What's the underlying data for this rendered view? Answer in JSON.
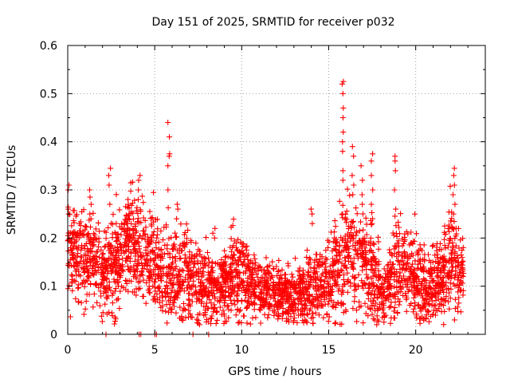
{
  "chart_data": {
    "type": "scatter",
    "title": "Day 151 of 2025, SRMTID for receiver p032",
    "xlabel": "GPS time / hours",
    "ylabel": "SRMTID / TECUs",
    "xlim": [
      0,
      24
    ],
    "ylim": [
      0,
      0.6
    ],
    "x_ticks": [
      0,
      5,
      10,
      15,
      20
    ],
    "x_tick_labels": [
      "0",
      "5",
      "10",
      "15",
      "20"
    ],
    "y_ticks": [
      0,
      0.1,
      0.2,
      0.3,
      0.4,
      0.5,
      0.6
    ],
    "y_tick_labels": [
      "0",
      "0.1",
      "0.2",
      "0.3",
      "0.4",
      "0.5",
      "0.6"
    ],
    "grid": true,
    "marker": "plus",
    "color": "#ff0000",
    "sample_count_per_hour": 135,
    "data_end_hour": 22.75,
    "envelope": [
      [
        0.0,
        0.19,
        0.05
      ],
      [
        0.5,
        0.16,
        0.05
      ],
      [
        1.0,
        0.15,
        0.045
      ],
      [
        1.5,
        0.17,
        0.05
      ],
      [
        2.0,
        0.12,
        0.04
      ],
      [
        2.5,
        0.15,
        0.05
      ],
      [
        3.0,
        0.16,
        0.05
      ],
      [
        3.5,
        0.19,
        0.05
      ],
      [
        4.0,
        0.17,
        0.05
      ],
      [
        4.5,
        0.16,
        0.05
      ],
      [
        5.0,
        0.14,
        0.05
      ],
      [
        5.5,
        0.12,
        0.05
      ],
      [
        6.0,
        0.14,
        0.05
      ],
      [
        6.5,
        0.12,
        0.05
      ],
      [
        7.0,
        0.13,
        0.05
      ],
      [
        7.5,
        0.11,
        0.045
      ],
      [
        8.0,
        0.1,
        0.04
      ],
      [
        8.5,
        0.09,
        0.035
      ],
      [
        9.0,
        0.1,
        0.04
      ],
      [
        9.5,
        0.12,
        0.045
      ],
      [
        10.0,
        0.13,
        0.045
      ],
      [
        10.5,
        0.1,
        0.035
      ],
      [
        11.0,
        0.09,
        0.03
      ],
      [
        11.5,
        0.09,
        0.03
      ],
      [
        12.0,
        0.08,
        0.03
      ],
      [
        12.5,
        0.08,
        0.03
      ],
      [
        13.0,
        0.08,
        0.03
      ],
      [
        13.5,
        0.08,
        0.03
      ],
      [
        14.0,
        0.1,
        0.035
      ],
      [
        14.5,
        0.11,
        0.04
      ],
      [
        15.0,
        0.12,
        0.045
      ],
      [
        15.5,
        0.14,
        0.05
      ],
      [
        16.0,
        0.17,
        0.06
      ],
      [
        16.5,
        0.15,
        0.05
      ],
      [
        17.0,
        0.15,
        0.05
      ],
      [
        17.5,
        0.13,
        0.05
      ],
      [
        18.0,
        0.08,
        0.035
      ],
      [
        18.5,
        0.1,
        0.04
      ],
      [
        19.0,
        0.14,
        0.05
      ],
      [
        19.5,
        0.13,
        0.05
      ],
      [
        20.0,
        0.12,
        0.045
      ],
      [
        20.5,
        0.1,
        0.035
      ],
      [
        21.0,
        0.1,
        0.04
      ],
      [
        21.5,
        0.12,
        0.04
      ],
      [
        22.0,
        0.17,
        0.06
      ],
      [
        22.5,
        0.12,
        0.04
      ],
      [
        22.75,
        0.11,
        0.04
      ]
    ],
    "spike_clusters": [
      {
        "x": 0.05,
        "values": [
          0.31,
          0.3,
          0.26,
          0.25
        ]
      },
      {
        "x": 1.3,
        "values": [
          0.285,
          0.27,
          0.25,
          0.24
        ]
      },
      {
        "x": 2.4,
        "values": [
          0.345,
          0.33,
          0.31,
          0.27
        ]
      },
      {
        "x": 3.5,
        "values": [
          0.28,
          0.27,
          0.25,
          0.24
        ]
      },
      {
        "x": 4.1,
        "values": [
          0.33,
          0.32,
          0.3,
          0.28
        ]
      },
      {
        "x": 5.8,
        "values": [
          0.44,
          0.41,
          0.375,
          0.37,
          0.35,
          0.3
        ]
      },
      {
        "x": 6.3,
        "values": [
          0.27,
          0.26,
          0.24
        ]
      },
      {
        "x": 8.4,
        "values": [
          0.22,
          0.21,
          0.2
        ]
      },
      {
        "x": 14.0,
        "values": [
          0.26,
          0.25,
          0.23
        ]
      },
      {
        "x": 15.8,
        "values": [
          0.525,
          0.52,
          0.5,
          0.47,
          0.45,
          0.42,
          0.4,
          0.38,
          0.34,
          0.32,
          0.25
        ]
      },
      {
        "x": 16.4,
        "values": [
          0.39,
          0.37,
          0.33,
          0.31,
          0.29
        ]
      },
      {
        "x": 16.9,
        "values": [
          0.35,
          0.32,
          0.29,
          0.27
        ]
      },
      {
        "x": 17.5,
        "values": [
          0.375,
          0.36,
          0.33,
          0.3,
          0.27,
          0.24,
          0.23
        ]
      },
      {
        "x": 18.8,
        "values": [
          0.37,
          0.36,
          0.34,
          0.3,
          0.26
        ]
      },
      {
        "x": 22.2,
        "values": [
          0.345,
          0.33,
          0.31,
          0.29,
          0.27,
          0.25
        ]
      },
      {
        "x": 17.8,
        "values": [
          0.03,
          0.02,
          0.05
        ]
      },
      {
        "x": 13.6,
        "values": [
          0.03,
          0.04
        ]
      },
      {
        "x": 21.1,
        "values": [
          0.04,
          0.05
        ]
      }
    ],
    "zero_points": [
      2.2,
      4.1,
      4.2,
      5.0,
      5.1,
      7.2,
      8.1
    ]
  }
}
